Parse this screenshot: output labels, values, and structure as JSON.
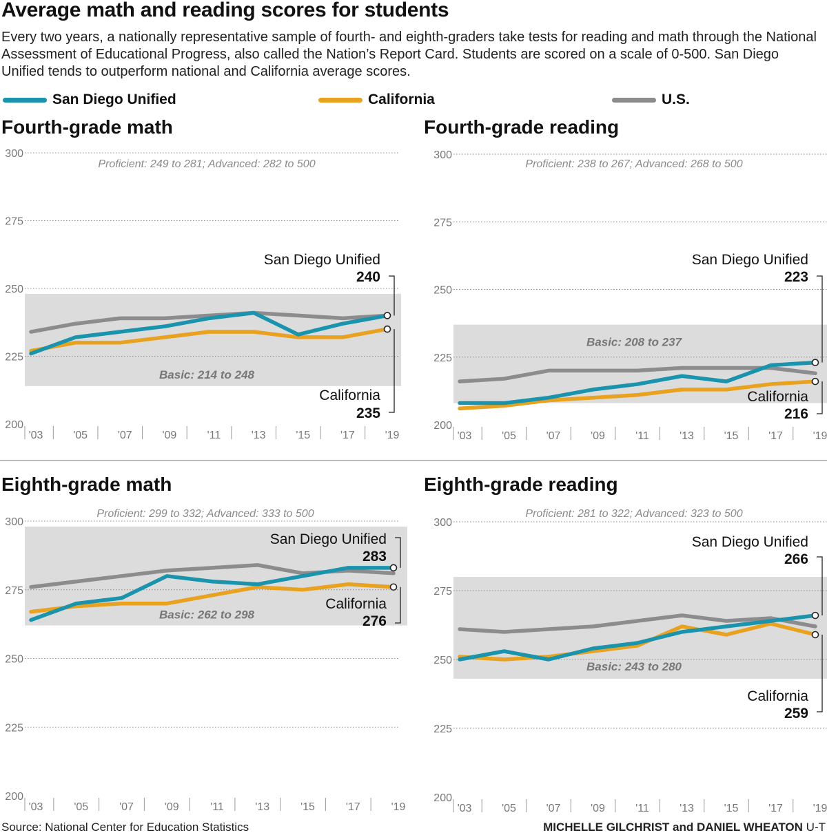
{
  "title": "Average math and reading scores for students",
  "subtitle": "Every two years, a nationally representative sample of fourth- and eighth-graders take tests for reading and math through the National Assessment of Educational Progress, also called the Nation’s Report Card. Students are scored on a scale of 0-500. San Diego Unified tends to outperform national and California average scores.",
  "legend": [
    {
      "name": "San Diego Unified",
      "color": "#1a93ad"
    },
    {
      "name": "California",
      "color": "#e8a21f"
    },
    {
      "name": "U.S.",
      "color": "#8c8c8e"
    }
  ],
  "source": "Source: National Center for Education Statistics",
  "credit_names": "MICHELLE GILCHRIST and DANIEL WHEATON",
  "credit_org": "U-T",
  "chart_data": [
    {
      "type": "line",
      "title": "Fourth-grade math",
      "x": [
        "'03",
        "'05",
        "'07",
        "'09",
        "'11",
        "'13",
        "'15",
        "'17",
        "'19"
      ],
      "ylim": [
        200,
        300
      ],
      "yticks": [
        200,
        225,
        250,
        275,
        300
      ],
      "proficient_note": "Proficient: 249 to 281; Advanced: 282 to 500",
      "basic_band": {
        "label": "Basic: 214 to 248",
        "range": [
          214,
          248
        ]
      },
      "series": [
        {
          "name": "San Diego Unified",
          "values": [
            226,
            232,
            234,
            236,
            239,
            241,
            233,
            237,
            240
          ]
        },
        {
          "name": "California",
          "values": [
            227,
            230,
            230,
            232,
            234,
            234,
            232,
            232,
            235
          ]
        },
        {
          "name": "U.S.",
          "values": [
            234,
            237,
            239,
            239,
            240,
            241,
            240,
            239,
            240
          ]
        }
      ],
      "end_labels": [
        {
          "name": "San Diego Unified",
          "value": "240"
        },
        {
          "name": "California",
          "value": "235"
        }
      ]
    },
    {
      "type": "line",
      "title": "Fourth-grade reading",
      "x": [
        "'03",
        "'05",
        "'07",
        "'09",
        "'11",
        "'13",
        "'15",
        "'17",
        "'19"
      ],
      "ylim": [
        200,
        300
      ],
      "yticks": [
        200,
        225,
        250,
        275,
        300
      ],
      "proficient_note": "Proficient: 238 to 267; Advanced: 268 to 500",
      "basic_band": {
        "label": "Basic: 208 to 237",
        "range": [
          208,
          237
        ]
      },
      "series": [
        {
          "name": "San Diego Unified",
          "values": [
            208,
            208,
            210,
            213,
            215,
            218,
            216,
            222,
            223
          ]
        },
        {
          "name": "California",
          "values": [
            206,
            207,
            209,
            210,
            211,
            213,
            213,
            215,
            216
          ]
        },
        {
          "name": "U.S.",
          "values": [
            216,
            217,
            220,
            220,
            220,
            221,
            221,
            221,
            219
          ]
        }
      ],
      "end_labels": [
        {
          "name": "San Diego Unified",
          "value": "223"
        },
        {
          "name": "California",
          "value": "216"
        }
      ]
    },
    {
      "type": "line",
      "title": "Eighth-grade math",
      "x": [
        "'03",
        "'05",
        "'07",
        "'09",
        "'11",
        "'13",
        "'15",
        "'17",
        "'19"
      ],
      "ylim": [
        200,
        300
      ],
      "yticks": [
        200,
        225,
        250,
        275,
        300
      ],
      "proficient_note": "Proficient: 299 to 332; Advanced: 333 to 500",
      "basic_band": {
        "label": "Basic: 262 to 298",
        "range": [
          262,
          298
        ]
      },
      "series": [
        {
          "name": "San Diego Unified",
          "values": [
            264,
            270,
            272,
            280,
            278,
            277,
            280,
            283,
            283
          ]
        },
        {
          "name": "California",
          "values": [
            267,
            269,
            270,
            270,
            273,
            276,
            275,
            277,
            276
          ]
        },
        {
          "name": "U.S.",
          "values": [
            276,
            278,
            280,
            282,
            283,
            284,
            281,
            282,
            281
          ]
        }
      ],
      "end_labels": [
        {
          "name": "San Diego Unified",
          "value": "283"
        },
        {
          "name": "California",
          "value": "276"
        }
      ]
    },
    {
      "type": "line",
      "title": "Eighth-grade reading",
      "x": [
        "'03",
        "'05",
        "'07",
        "'09",
        "'11",
        "'13",
        "'15",
        "'17",
        "'19"
      ],
      "ylim": [
        200,
        300
      ],
      "yticks": [
        200,
        225,
        250,
        275,
        300
      ],
      "proficient_note": "Proficient: 281 to 322; Advanced: 323 to 500",
      "basic_band": {
        "label": "Basic: 243 to 280",
        "range": [
          243,
          280
        ]
      },
      "series": [
        {
          "name": "San Diego Unified",
          "values": [
            250,
            253,
            250,
            254,
            256,
            260,
            262,
            264,
            266
          ]
        },
        {
          "name": "California",
          "values": [
            251,
            250,
            251,
            253,
            255,
            262,
            259,
            263,
            259
          ]
        },
        {
          "name": "U.S.",
          "values": [
            261,
            260,
            261,
            262,
            264,
            266,
            264,
            265,
            262
          ]
        }
      ],
      "end_labels": [
        {
          "name": "San Diego Unified",
          "value": "266"
        },
        {
          "name": "California",
          "value": "259"
        }
      ]
    }
  ]
}
